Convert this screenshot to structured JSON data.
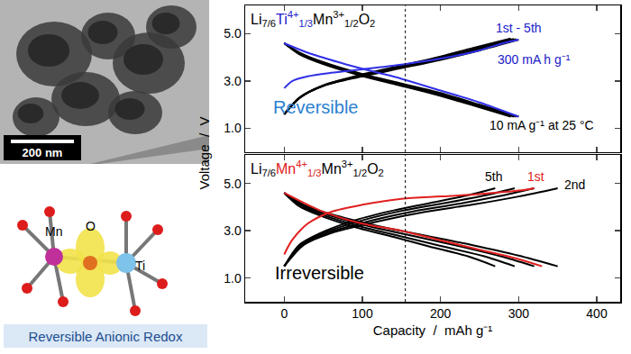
{
  "chart_data": [
    {
      "type": "line",
      "formula": [
        {
          "text": "Li",
          "sub": "7/6"
        },
        {
          "text": "Ti",
          "sup": "4+",
          "sub": "1/3",
          "color": "#2020c8"
        },
        {
          "text": "Mn",
          "sup": "3+",
          "sub": "1/2"
        },
        {
          "text": "O",
          "sub": "2"
        }
      ],
      "ylabel": "Voltage  /  V",
      "xlim": [
        -50,
        430
      ],
      "ylim": [
        0,
        6.2
      ],
      "xticks": [
        0,
        100,
        200,
        300,
        400
      ],
      "yticks": [
        {
          "value": 1,
          "label": "1.0"
        },
        {
          "value": 3,
          "label": "3.0"
        },
        {
          "value": 5,
          "label": "5.0"
        }
      ],
      "tick_labels": "y",
      "vline": 155,
      "series": [
        {
          "color": "#000000",
          "x": [
            0,
            20,
            50,
            100,
            150,
            200,
            250,
            300
          ],
          "values": [
            1.6,
            2.3,
            2.8,
            3.2,
            3.55,
            3.9,
            4.3,
            4.75
          ]
        },
        {
          "color": "#000000",
          "x": [
            0,
            20,
            50,
            99,
            148,
            198,
            247,
            297
          ],
          "values": [
            1.6,
            2.3,
            2.8,
            3.22,
            3.57,
            3.92,
            4.33,
            4.77
          ]
        },
        {
          "color": "#000000",
          "x": [
            0,
            20,
            49,
            98,
            147,
            196,
            245,
            294
          ],
          "values": [
            1.6,
            2.3,
            2.8,
            3.24,
            3.59,
            3.95,
            4.36,
            4.78
          ]
        },
        {
          "color": "#000000",
          "x": [
            0,
            19,
            48,
            97,
            145,
            193,
            242,
            290
          ],
          "values": [
            1.6,
            2.3,
            2.8,
            3.26,
            3.62,
            3.98,
            4.4,
            4.8
          ]
        },
        {
          "color": "#000000",
          "x": [
            0,
            20,
            50,
            100,
            150,
            200,
            250,
            300
          ],
          "values": [
            4.6,
            4.2,
            3.8,
            3.3,
            2.9,
            2.5,
            2.0,
            1.5
          ]
        },
        {
          "color": "#000000",
          "x": [
            0,
            20,
            50,
            99,
            148,
            198,
            247,
            297
          ],
          "values": [
            4.6,
            4.18,
            3.78,
            3.28,
            2.88,
            2.48,
            1.99,
            1.5
          ]
        },
        {
          "color": "#000000",
          "x": [
            0,
            20,
            49,
            98,
            147,
            196,
            245,
            294
          ],
          "values": [
            4.6,
            4.16,
            3.76,
            3.26,
            2.86,
            2.46,
            1.98,
            1.5
          ]
        },
        {
          "color": "#000000",
          "x": [
            0,
            19,
            48,
            97,
            145,
            193,
            242,
            290
          ],
          "values": [
            4.6,
            4.14,
            3.74,
            3.24,
            2.84,
            2.44,
            1.97,
            1.5
          ]
        },
        {
          "color": "#3030e8",
          "x": [
            0,
            10,
            30,
            60,
            100,
            150,
            200,
            250,
            280,
            300
          ],
          "values": [
            2.7,
            3.0,
            3.2,
            3.35,
            3.5,
            3.7,
            3.95,
            4.3,
            4.6,
            4.75
          ]
        },
        {
          "color": "#3030e8",
          "x": [
            0,
            30,
            80,
            150,
            200,
            250,
            300
          ],
          "values": [
            4.6,
            4.2,
            3.7,
            3.1,
            2.6,
            2.1,
            1.5
          ]
        }
      ],
      "annotations": [
        {
          "text": "1st - 5th",
          "x": 300,
          "y": 5.25,
          "color": "#2020c8"
        },
        {
          "text": "300 mA h g⁻¹",
          "x": 320,
          "y": 3.9,
          "color": "#2020c8"
        },
        {
          "text": "Reversible",
          "x": 40,
          "y": 1.9,
          "color": "#2a7fd0"
        },
        {
          "text": "10 mA g⁻¹ at 25 °C",
          "x": 330,
          "y": 1.15,
          "color": "#000000"
        }
      ]
    },
    {
      "type": "line",
      "formula": [
        {
          "text": "Li",
          "sub": "7/6"
        },
        {
          "text": "Mn",
          "sup": "4+",
          "sub": "1/3",
          "color": "#e02020"
        },
        {
          "text": "Mn",
          "sup": "3+",
          "sub": "1/2"
        },
        {
          "text": "O",
          "sub": "2"
        }
      ],
      "xlabel": "Capacity  /  mAh g⁻¹",
      "xlim": [
        -50,
        430
      ],
      "ylim": [
        0,
        6.2
      ],
      "xticks": [
        0,
        100,
        200,
        300,
        400
      ],
      "yticks": [
        {
          "value": 1,
          "label": "1.0"
        },
        {
          "value": 3,
          "label": "3.0"
        },
        {
          "value": 5,
          "label": "5.0"
        }
      ],
      "vline": 155,
      "series": [
        {
          "color": "#000000",
          "x": [
            0,
            25,
            60,
            120,
            180,
            240,
            300,
            350
          ],
          "values": [
            1.5,
            2.4,
            2.9,
            3.4,
            3.8,
            4.1,
            4.45,
            4.8
          ]
        },
        {
          "color": "#000000",
          "x": [
            0,
            23,
            55,
            110,
            165,
            220,
            275,
            320
          ],
          "values": [
            1.5,
            2.4,
            2.9,
            3.42,
            3.82,
            4.12,
            4.46,
            4.8
          ]
        },
        {
          "color": "#000000",
          "x": [
            0,
            21,
            50,
            100,
            150,
            200,
            255,
            295
          ],
          "values": [
            1.5,
            2.4,
            2.9,
            3.44,
            3.84,
            4.14,
            4.48,
            4.8
          ]
        },
        {
          "color": "#000000",
          "x": [
            0,
            19,
            46,
            92,
            140,
            185,
            235,
            270
          ],
          "values": [
            1.5,
            2.4,
            2.9,
            3.46,
            3.86,
            4.16,
            4.5,
            4.8
          ]
        },
        {
          "color": "#000000",
          "x": [
            0,
            25,
            60,
            120,
            180,
            240,
            300,
            350
          ],
          "values": [
            4.6,
            4.1,
            3.7,
            3.2,
            2.8,
            2.4,
            1.95,
            1.5
          ]
        },
        {
          "color": "#000000",
          "x": [
            0,
            23,
            55,
            110,
            165,
            220,
            275,
            320
          ],
          "values": [
            4.6,
            4.08,
            3.68,
            3.18,
            2.78,
            2.38,
            1.94,
            1.5
          ]
        },
        {
          "color": "#000000",
          "x": [
            0,
            21,
            50,
            100,
            150,
            200,
            255,
            295
          ],
          "values": [
            4.6,
            4.06,
            3.66,
            3.16,
            2.76,
            2.36,
            1.93,
            1.5
          ]
        },
        {
          "color": "#000000",
          "x": [
            0,
            19,
            46,
            92,
            140,
            185,
            235,
            270
          ],
          "values": [
            4.6,
            4.04,
            3.64,
            3.14,
            2.74,
            2.34,
            1.92,
            1.5
          ]
        },
        {
          "color": "#e02020",
          "x": [
            0,
            10,
            30,
            60,
            100,
            150,
            200,
            250,
            300,
            320
          ],
          "values": [
            2.0,
            2.6,
            3.3,
            3.8,
            4.1,
            4.35,
            4.45,
            4.55,
            4.7,
            4.8
          ]
        },
        {
          "color": "#e02020",
          "x": [
            0,
            50,
            100,
            150,
            200,
            250,
            300,
            330
          ],
          "values": [
            4.6,
            3.8,
            3.3,
            3.0,
            2.6,
            2.2,
            1.8,
            1.5
          ]
        }
      ],
      "annotations": [
        {
          "text": "5th",
          "x": 268,
          "y": 5.3,
          "color": "#000000"
        },
        {
          "text": "1st",
          "x": 322,
          "y": 5.3,
          "color": "#e02020"
        },
        {
          "text": "2nd",
          "x": 372,
          "y": 4.95,
          "color": "#000000"
        },
        {
          "text": "Irreversible",
          "x": 45,
          "y": 1.2,
          "color": "#000000"
        }
      ]
    }
  ],
  "images": {
    "tem": {
      "scale_bar": "200 nm"
    },
    "structure": {
      "atom_labels": [
        "Mn",
        "O",
        "Ti"
      ],
      "caption": "Reversible Anionic Redox"
    }
  }
}
